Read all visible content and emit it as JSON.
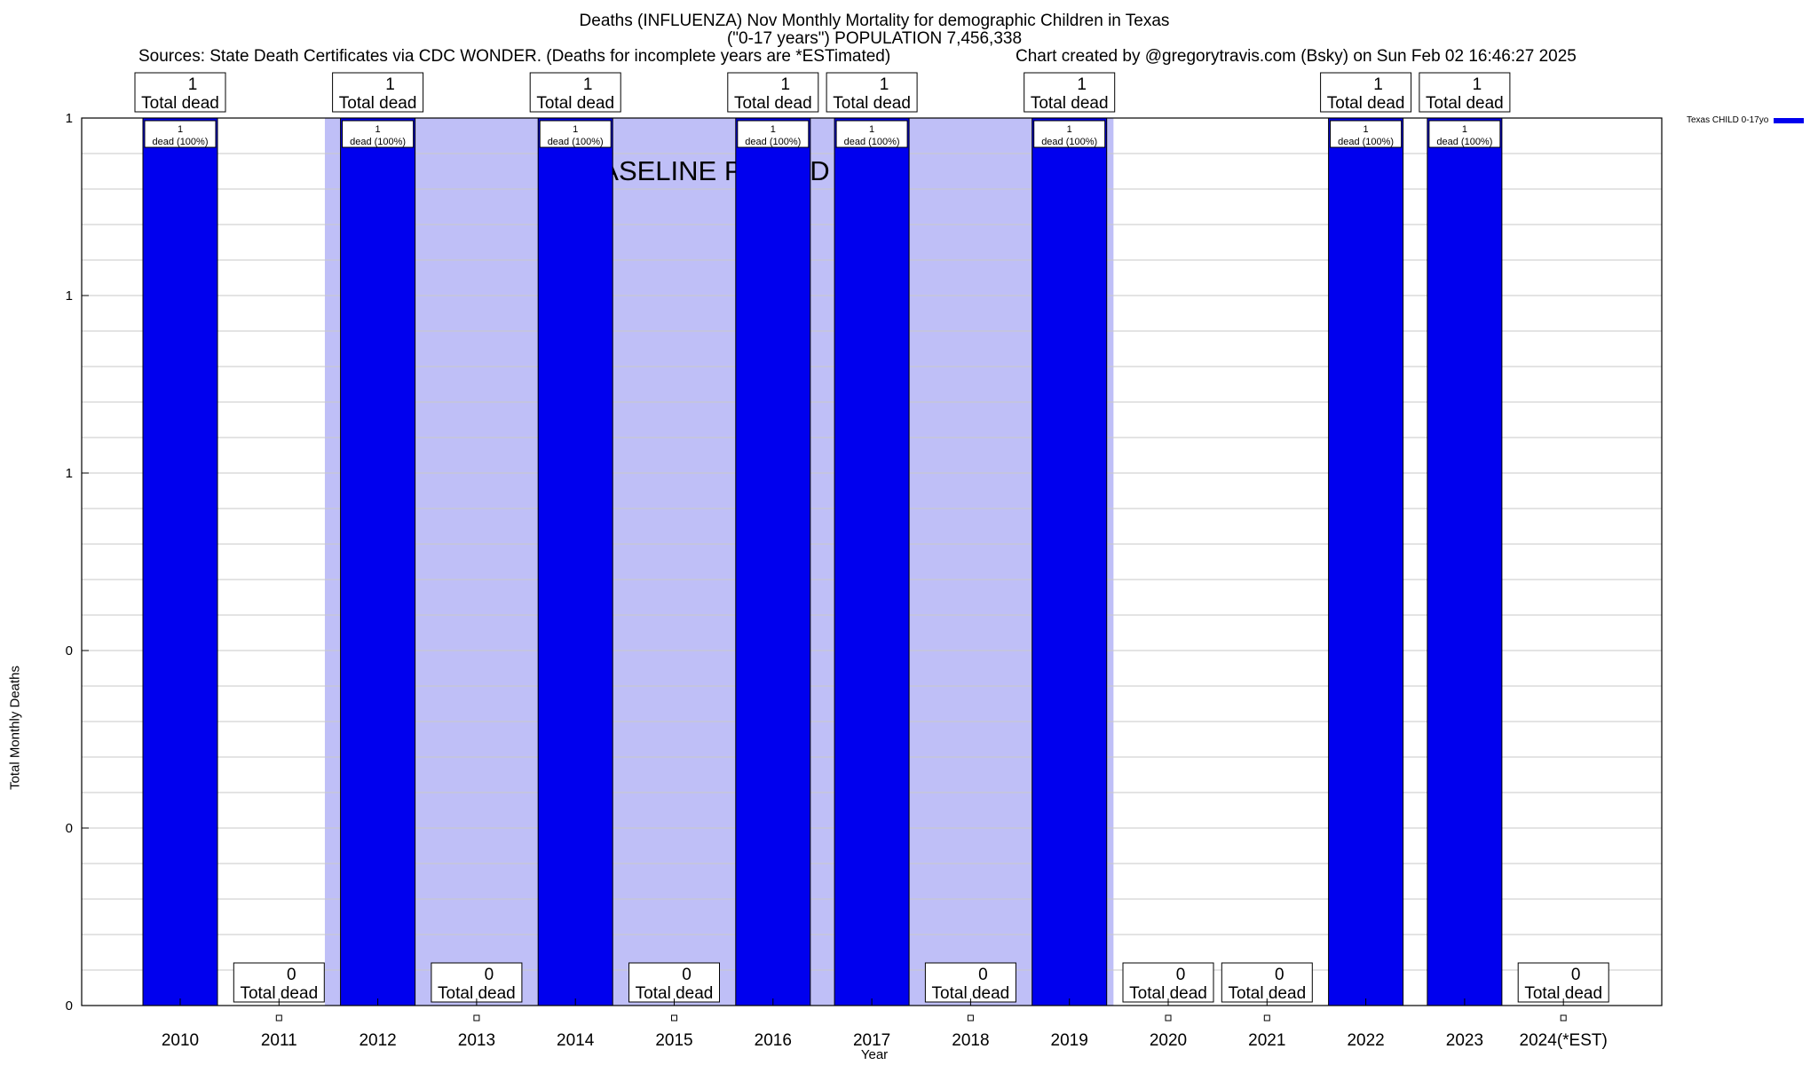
{
  "header": {
    "title": "Deaths (INFLUENZA) Nov Monthly Mortality for demographic Children in Texas",
    "subtitle": "(\"0-17 years\") POPULATION 7,456,338",
    "sources": "Sources: State Death Certificates via CDC WONDER. (Deaths for incomplete years are *ESTimated)",
    "credit": "Chart created by @gregorytravis.com (Bsky) on Sun Feb 02 16:46:27 2025"
  },
  "chart_data": {
    "type": "bar",
    "xlabel": "Year",
    "ylabel": "Total Monthly Deaths",
    "ylim": [
      0,
      1
    ],
    "y_tick_labels": [
      "0",
      "0",
      "0",
      "1",
      "1",
      "1"
    ],
    "categories": [
      "2010",
      "2011",
      "2012",
      "2013",
      "2014",
      "2015",
      "2016",
      "2017",
      "2018",
      "2019",
      "2020",
      "2021",
      "2022",
      "2023",
      "2024(*EST)"
    ],
    "series": [
      {
        "name": "Texas CHILD 0-17yo",
        "color": "#0000ee",
        "values": [
          1,
          0,
          1,
          0,
          1,
          0,
          1,
          1,
          0,
          1,
          0,
          0,
          1,
          1,
          0
        ]
      }
    ],
    "total_labels": [
      "1",
      "0",
      "1",
      "0",
      "1",
      "0",
      "1",
      "1",
      "0",
      "1",
      "0",
      "0",
      "1",
      "1",
      "0"
    ],
    "total_label_suffix": "Total dead",
    "inner_labels": [
      "1",
      "",
      "1",
      "",
      "1",
      "",
      "1",
      "1",
      "",
      "1",
      "",
      "",
      "1",
      "1",
      ""
    ],
    "inner_label_suffix": "dead (100%)",
    "baseline_period": {
      "label": "BASELINE PERIOD",
      "from": "2012",
      "to": "2019",
      "color": "#bfbff7"
    },
    "grid": true,
    "legend_position": "top-right"
  }
}
